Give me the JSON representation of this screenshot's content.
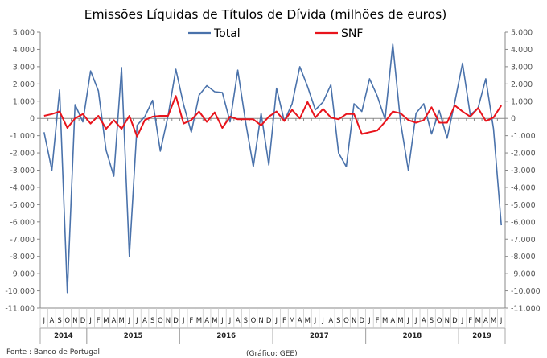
{
  "chart_data": {
    "type": "line",
    "title": "Emissões Líquidas de Títulos de Dívida (milhões de euros)",
    "source": "Fonte : Banco de Portugal",
    "credit": "(Gráfico: GEE)",
    "ylim": [
      -11000,
      5000
    ],
    "yticks": [
      "-11.000",
      "-10.000",
      "-9.000",
      "-8.000",
      "-7.000",
      "-6.000",
      "-5.000",
      "-4.000",
      "-3.000",
      "-2.000",
      "-1.000",
      "0",
      "1.000",
      "2.000",
      "3.000",
      "4.000",
      "5.000"
    ],
    "legend_position": "top",
    "colors": {
      "Total": "#4a72ab",
      "SNF": "#e8141c"
    },
    "months": [
      "J",
      "A",
      "S",
      "O",
      "N",
      "D",
      "J",
      "F",
      "M",
      "A",
      "M",
      "J",
      "J",
      "A",
      "S",
      "O",
      "N",
      "D",
      "J",
      "F",
      "M",
      "A",
      "M",
      "J",
      "J",
      "A",
      "S",
      "O",
      "N",
      "D",
      "J",
      "F",
      "M",
      "A",
      "M",
      "J",
      "J",
      "A",
      "S",
      "O",
      "N",
      "D",
      "J",
      "F",
      "M",
      "A",
      "M",
      "J",
      "J",
      "A",
      "S",
      "O",
      "N",
      "D",
      "J",
      "F",
      "M",
      "A",
      "M",
      "J"
    ],
    "years": [
      {
        "label": "2014",
        "start": 0,
        "count": 6
      },
      {
        "label": "2015",
        "start": 6,
        "count": 12
      },
      {
        "label": "2016",
        "start": 18,
        "count": 12
      },
      {
        "label": "2017",
        "start": 30,
        "count": 12
      },
      {
        "label": "2018",
        "start": 42,
        "count": 12
      },
      {
        "label": "2019",
        "start": 54,
        "count": 6
      }
    ],
    "series": [
      {
        "name": "Total",
        "values": [
          -800,
          -3000,
          1650,
          -10100,
          800,
          -200,
          2750,
          1600,
          -1850,
          -3350,
          2950,
          -8000,
          -400,
          100,
          1050,
          -1900,
          150,
          2850,
          800,
          -800,
          1350,
          1900,
          1550,
          1500,
          -200,
          2800,
          -200,
          -2800,
          300,
          -2700,
          1750,
          -150,
          850,
          3000,
          1850,
          500,
          950,
          1950,
          -2000,
          -2800,
          850,
          400,
          2300,
          1300,
          -50,
          4300,
          -200,
          -3000,
          300,
          850,
          -900,
          450,
          -1150,
          950,
          3200,
          200,
          600,
          2300,
          -600,
          -6200
        ]
      },
      {
        "name": "SNF",
        "values": [
          150,
          250,
          400,
          -550,
          0,
          250,
          -300,
          150,
          -600,
          -100,
          -600,
          150,
          -1050,
          -100,
          100,
          150,
          150,
          1300,
          -300,
          -100,
          400,
          -200,
          350,
          -550,
          100,
          -50,
          -50,
          -50,
          -400,
          100,
          400,
          -150,
          500,
          0,
          950,
          50,
          550,
          50,
          -50,
          250,
          250,
          -900,
          -800,
          -700,
          -200,
          400,
          300,
          -100,
          -250,
          -100,
          650,
          -250,
          -250,
          750,
          400,
          100,
          600,
          -150,
          50,
          750
        ]
      }
    ]
  }
}
